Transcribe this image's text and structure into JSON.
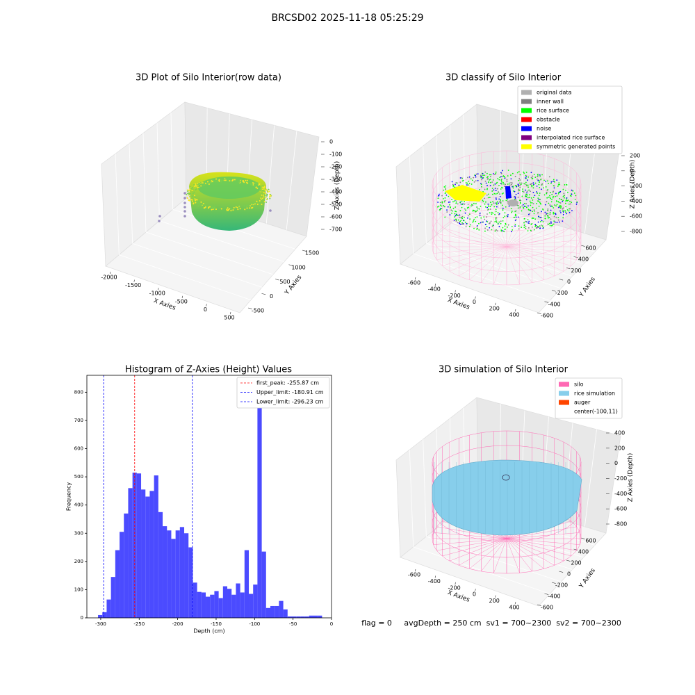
{
  "title": "BRCSD02 2025-11-18 05:25:29",
  "chart_data": [
    {
      "type": "scatter3d",
      "title": "3D Plot of Silo Interior(row data)",
      "xlabel": "X Axies",
      "ylabel": "Y Axies",
      "zlabel": "Z Axies (Depth)",
      "xticks": [
        -2000,
        -1500,
        -1000,
        -500,
        0,
        500
      ],
      "yticks": [
        -500,
        0,
        500,
        1000,
        1500
      ],
      "zticks": [
        -700,
        -600,
        -500,
        -400,
        -300,
        -200,
        -100,
        0
      ]
    },
    {
      "type": "scatter3d",
      "title": "3D classify of Silo Interior",
      "xlabel": "X Axies",
      "ylabel": "Y Axies",
      "zlabel": "Z Axies (Depth)",
      "xticks": [
        -600,
        -400,
        -200,
        0,
        200,
        400
      ],
      "yticks": [
        -600,
        -400,
        -200,
        0,
        200,
        400,
        600
      ],
      "zticks": [
        -800,
        -600,
        -400,
        -200,
        0,
        200
      ],
      "legend": [
        {
          "name": "original data",
          "color": "#b0b0b0"
        },
        {
          "name": "inner wall",
          "color": "#808080"
        },
        {
          "name": "rice surface",
          "color": "#00ff00"
        },
        {
          "name": "obstacle",
          "color": "#ff0000"
        },
        {
          "name": "noise",
          "color": "#0000ff"
        },
        {
          "name": "interpolated rice surface",
          "color": "#800080"
        },
        {
          "name": "symmetric generated points",
          "color": "#ffff00"
        }
      ]
    },
    {
      "type": "histogram",
      "title": "Histogram of Z-Axies (Height) Values",
      "xlabel": "Depth (cm)",
      "ylabel": "Frequency",
      "color": "#4b4bff",
      "bins": [
        -303.5,
        -297.9,
        -292.3,
        -286.7,
        -281.1,
        -275.5,
        -269.9,
        -264.3,
        -258.7,
        -253.1,
        -247.5,
        -241.9,
        -236.3,
        -230.7,
        -225.1,
        -219.5,
        -213.9,
        -208.3,
        -202.7,
        -197.1,
        -191.5,
        -185.9,
        -180.3,
        -174.7,
        -169.1,
        -163.5,
        -157.9,
        -152.3,
        -146.7,
        -141.1,
        -135.5,
        -129.9,
        -124.3,
        -118.7,
        -113.1,
        -107.5,
        -101.9,
        -96.3,
        -90.7,
        -85.1,
        -79.5,
        -73.9,
        -68.3,
        -62.7,
        -57.1,
        -51.5,
        -45.9,
        -40.3,
        -34.7,
        -29.1,
        -23.5,
        -17.9,
        -12.3
      ],
      "values": [
        10,
        20,
        65,
        145,
        240,
        305,
        370,
        460,
        515,
        512,
        455,
        430,
        450,
        505,
        375,
        325,
        310,
        280,
        310,
        322,
        300,
        250,
        125,
        92,
        90,
        75,
        82,
        95,
        70,
        112,
        103,
        82,
        122,
        90,
        240,
        85,
        118,
        815,
        235,
        35,
        42,
        42,
        60,
        30,
        5,
        5,
        5,
        5,
        5,
        8,
        8,
        8
      ],
      "xlim": [
        -318,
        0
      ],
      "ylim": [
        0,
        860
      ],
      "xticks": [
        -300,
        -250,
        -200,
        -150,
        -100,
        -50,
        0
      ],
      "yticks": [
        0,
        100,
        200,
        300,
        400,
        500,
        600,
        700,
        800
      ],
      "lines": [
        {
          "label": "first_peak: -255.87 cm",
          "x": -255.87,
          "color": "#ff0000"
        },
        {
          "label": "Upper_limit: -180.91 cm",
          "x": -180.91,
          "color": "#0000ff"
        },
        {
          "label": "Lower_limit: -296.23 cm",
          "x": -296.23,
          "color": "#0000ff"
        }
      ],
      "legend_position": "upper right"
    },
    {
      "type": "surface3d",
      "title": "3D simulation of Silo Interior",
      "xlabel": "X Axies",
      "ylabel": "Y Axies",
      "zlabel": "Z Axies (Depth)",
      "xticks": [
        -600,
        -400,
        -200,
        0,
        200,
        400
      ],
      "yticks": [
        -600,
        -400,
        -200,
        0,
        200,
        400,
        600
      ],
      "zticks": [
        -800,
        -600,
        -400,
        -200,
        0,
        200,
        400
      ],
      "legend": [
        {
          "name": "silo",
          "color": "#ff69b4"
        },
        {
          "name": "rice simulation",
          "color": "#87ceeb"
        },
        {
          "name": "auger",
          "color": "#ff4500"
        },
        {
          "name": "center(-100,11)",
          "color": "#ffffff"
        }
      ]
    }
  ],
  "footer": "flag = 0     avgDepth = 250 cm  sv1 = 700~2300  sv2 = 700~2300"
}
